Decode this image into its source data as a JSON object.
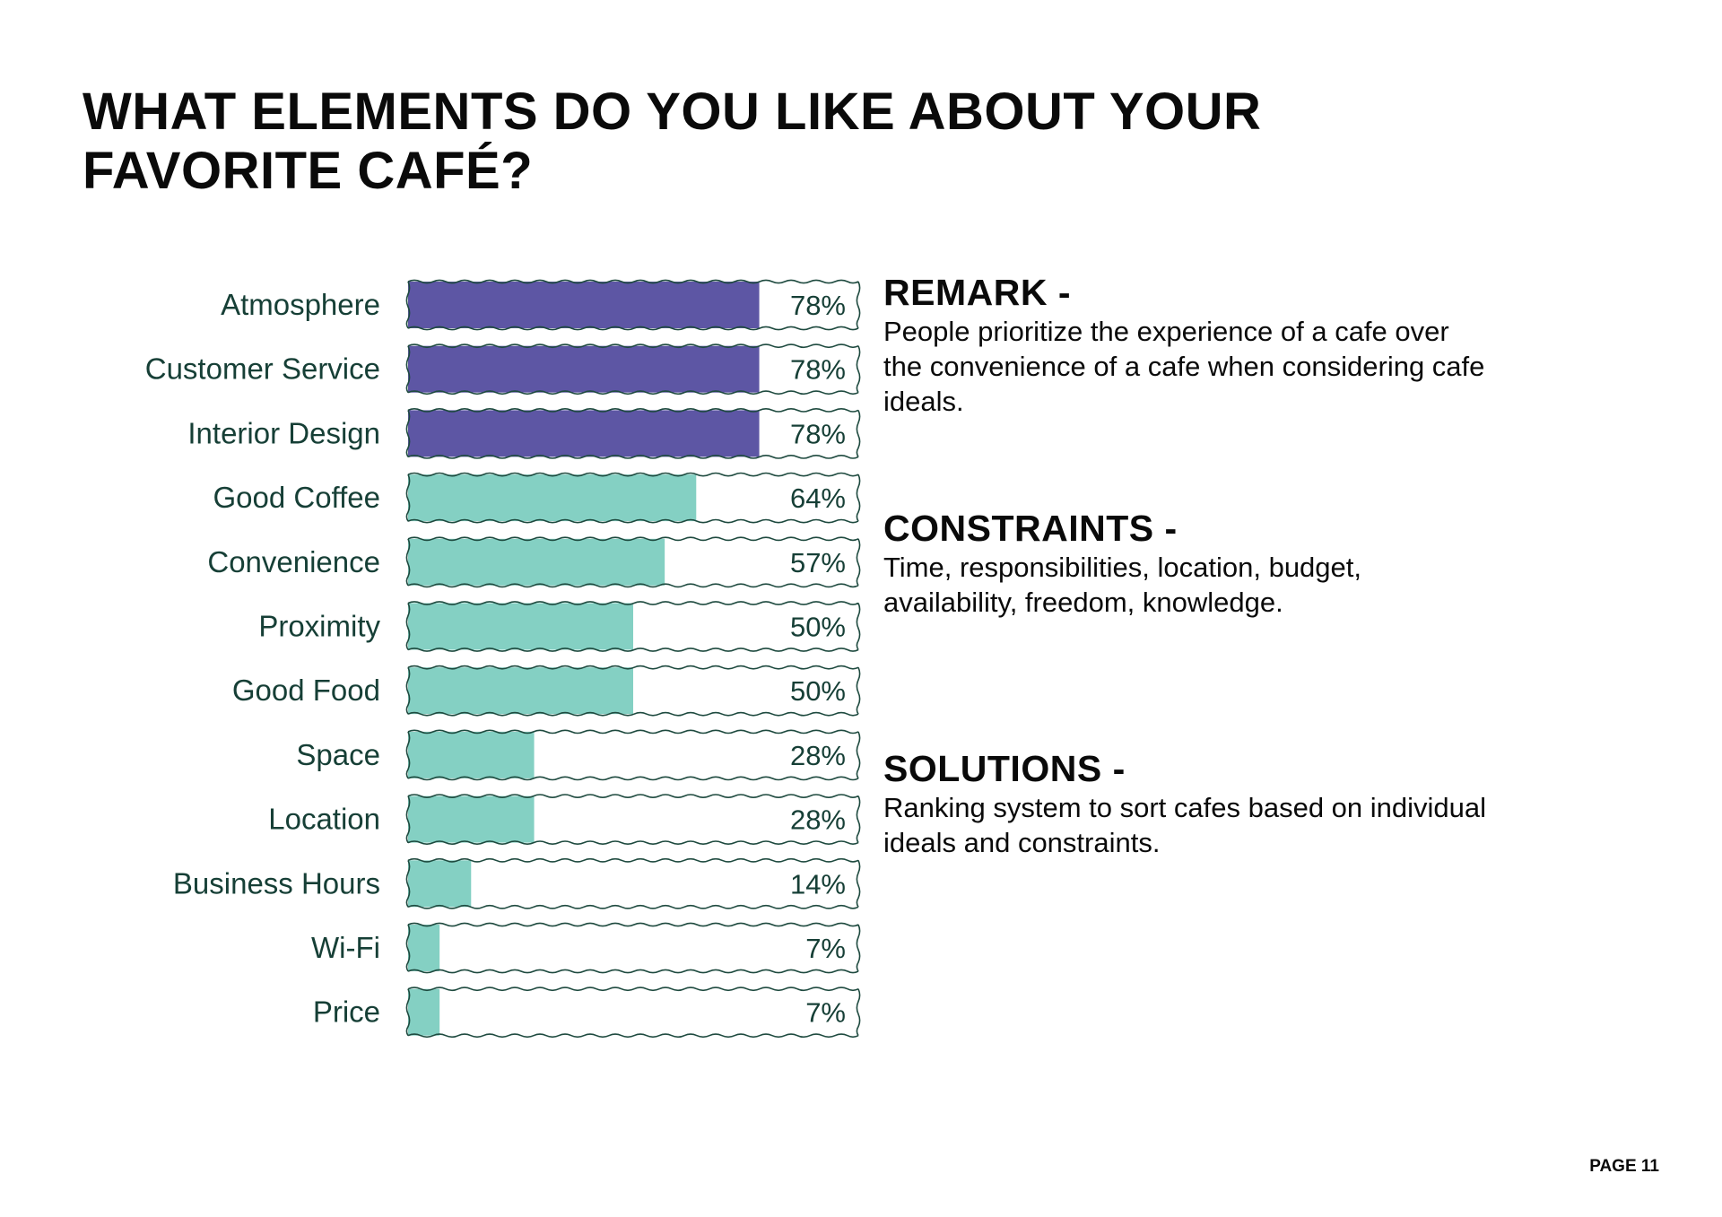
{
  "page": {
    "title": "WHAT ELEMENTS DO YOU LIKE ABOUT YOUR FAVORITE CAFÉ?",
    "page_number": "PAGE 11"
  },
  "sections": {
    "remark": {
      "heading": "REMARK -",
      "body": "People prioritize the experience of a cafe over the convenience of a cafe when considering cafe ideals."
    },
    "constraints": {
      "heading": "CONSTRAINTS -",
      "body": "Time, responsibilities, location, budget, availability, freedom, knowledge."
    },
    "solutions": {
      "heading": "SOLUTIONS -",
      "body": "Ranking system to sort cafes based on individual ideals and constraints."
    }
  },
  "colors": {
    "highlight": "#5d56a4",
    "normal": "#84d0c3",
    "outline": "#1e4a3f",
    "label": "#163f36"
  },
  "chart_data": {
    "type": "bar",
    "orientation": "horizontal",
    "title": "WHAT ELEMENTS DO YOU LIKE ABOUT YOUR FAVORITE CAFÉ?",
    "categories": [
      "Atmosphere",
      "Customer Service",
      "Interior Design",
      "Good Coffee",
      "Convenience",
      "Proximity",
      "Good Food",
      "Space",
      "Location",
      "Business Hours",
      "Wi-Fi",
      "Price"
    ],
    "values": [
      78,
      78,
      78,
      64,
      57,
      50,
      50,
      28,
      28,
      14,
      7,
      7
    ],
    "value_labels": [
      "78%",
      "78%",
      "78%",
      "64%",
      "57%",
      "50%",
      "50%",
      "28%",
      "28%",
      "14%",
      "7%",
      "7%"
    ],
    "highlighted": [
      true,
      true,
      true,
      false,
      false,
      false,
      false,
      false,
      false,
      false,
      false,
      false
    ],
    "xlim": [
      0,
      100
    ],
    "unit": "%",
    "grid": false,
    "legend": "none"
  }
}
